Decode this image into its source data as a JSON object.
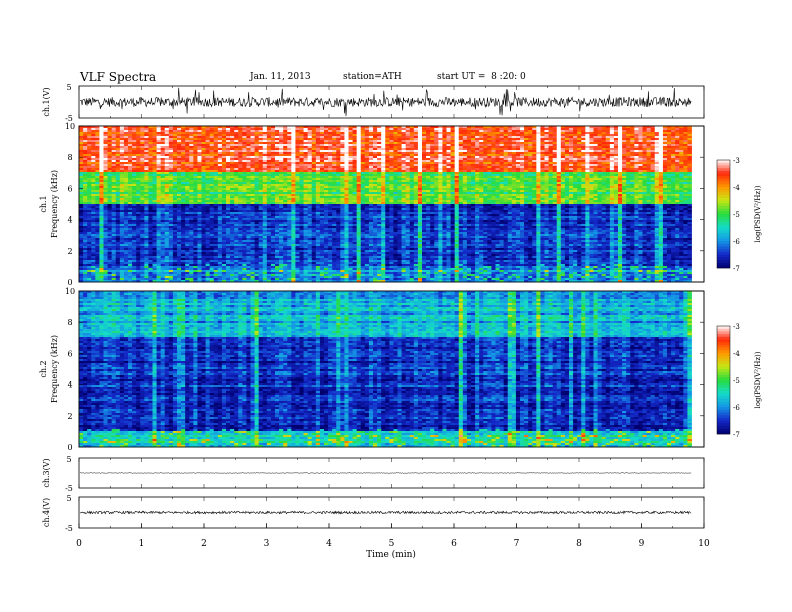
{
  "header": {
    "title": "VLF Spectra",
    "date": "Jan. 11, 2013",
    "station": "station=ATH",
    "start": "start UT =  8 :20: 0"
  },
  "colors": {
    "spec_red": "#ff2a10",
    "spec_yellow": "#ffe000",
    "spec_green": "#20e040",
    "spec_cyan": "#10d0e0",
    "spec_blue": "#1030d0",
    "spec_navy": "#000080"
  },
  "chart_data": [
    {
      "type": "line",
      "panel": "ch1-waveform",
      "ylabel": "ch.1(V)",
      "yticks": [
        "5",
        "-5"
      ],
      "ylim": [
        -5,
        5
      ],
      "xlim": [
        0,
        10
      ],
      "description_values": {
        "baseline": 0,
        "typical_spread": 1.5
      }
    },
    {
      "type": "heatmap",
      "panel": "ch1-spectrogram",
      "side_label": "ch.1",
      "ylabel": "Frequency (kHz)",
      "yticks": [
        "0",
        "2",
        "4",
        "6",
        "8",
        "10"
      ],
      "ylim": [
        0,
        10
      ],
      "xlim": [
        0,
        10
      ],
      "colorbar": {
        "label": "log(PSD(V²/Hz))",
        "ticks": [
          "-3",
          "-4",
          "-5",
          "-6",
          "-7"
        ],
        "range": [
          -7,
          -3
        ]
      },
      "dominant_level_by_band_khz": [
        {
          "band": [
            0,
            1
          ],
          "level": -6
        },
        {
          "band": [
            1,
            5
          ],
          "level": -6.5
        },
        {
          "band": [
            5,
            7
          ],
          "level": -5
        },
        {
          "band": [
            7,
            10
          ],
          "level": -3.5
        }
      ]
    },
    {
      "type": "heatmap",
      "panel": "ch2-spectrogram",
      "side_label": "ch.2",
      "ylabel": "Frequency (kHz)",
      "yticks": [
        "0",
        "2",
        "4",
        "6",
        "8",
        "10"
      ],
      "ylim": [
        0,
        10
      ],
      "xlim": [
        0,
        10
      ],
      "colorbar": {
        "label": "log(PSD(V²/Hz))",
        "ticks": [
          "-3",
          "-4",
          "-5",
          "-6",
          "-7"
        ],
        "range": [
          -7,
          -3
        ]
      },
      "dominant_level_by_band_khz": [
        {
          "band": [
            0,
            1
          ],
          "level": -5.5
        },
        {
          "band": [
            1,
            5
          ],
          "level": -6.5
        },
        {
          "band": [
            5,
            7
          ],
          "level": -6.5
        },
        {
          "band": [
            7,
            10
          ],
          "level": -5.8
        }
      ]
    },
    {
      "type": "line",
      "panel": "ch3-waveform",
      "ylabel": "ch.3(V)",
      "yticks": [
        "5",
        "-5"
      ],
      "ylim": [
        -5,
        5
      ],
      "xlim": [
        0,
        10
      ],
      "description_values": {
        "baseline": 0,
        "typical_spread": 0.1
      }
    },
    {
      "type": "line",
      "panel": "ch4-waveform",
      "ylabel": "ch.4(V)",
      "yticks": [
        "5",
        "-5"
      ],
      "ylim": [
        -5,
        5
      ],
      "xlim": [
        0,
        10
      ],
      "description_values": {
        "baseline": 0,
        "typical_spread": 0.4
      }
    }
  ],
  "xaxis": {
    "label": "Time (min)",
    "ticks": [
      "0",
      "1",
      "2",
      "3",
      "4",
      "5",
      "6",
      "7",
      "8",
      "9",
      "10"
    ],
    "data_end_min": 9.8
  }
}
